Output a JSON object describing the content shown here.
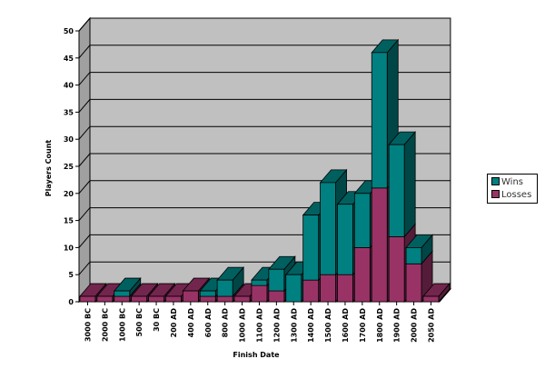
{
  "chart_data": {
    "type": "bar",
    "stacked": true,
    "three_d": true,
    "xlabel": "Finish Date",
    "ylabel": "Players Count",
    "ylim": [
      0,
      50
    ],
    "yticks": [
      0,
      5,
      10,
      15,
      20,
      25,
      30,
      35,
      40,
      45,
      50
    ],
    "grid": true,
    "legend_position": "right",
    "categories": [
      "3000 BC",
      "2000 BC",
      "1000 BC",
      "500 BC",
      "30 BC",
      "200 AD",
      "400 AD",
      "600 AD",
      "800 AD",
      "1000 AD",
      "1100 AD",
      "1200 AD",
      "1300 AD",
      "1400 AD",
      "1500 AD",
      "1600 AD",
      "1700 AD",
      "1800 AD",
      "1900 AD",
      "2000 AD",
      "2050 AD"
    ],
    "series": [
      {
        "name": "Losses",
        "color": "#993366",
        "values": [
          1,
          1,
          1,
          1,
          1,
          1,
          2,
          1,
          1,
          1,
          3,
          2,
          0,
          4,
          5,
          5,
          10,
          21,
          12,
          7,
          1
        ]
      },
      {
        "name": "Wins",
        "color": "#008080",
        "values": [
          0,
          0,
          1,
          0,
          0,
          0,
          0,
          1,
          3,
          0,
          1,
          4,
          5,
          12,
          17,
          13,
          10,
          25,
          17,
          3,
          0
        ]
      }
    ],
    "plot_background": "#c0c0c0",
    "floor_color": "#808080"
  }
}
